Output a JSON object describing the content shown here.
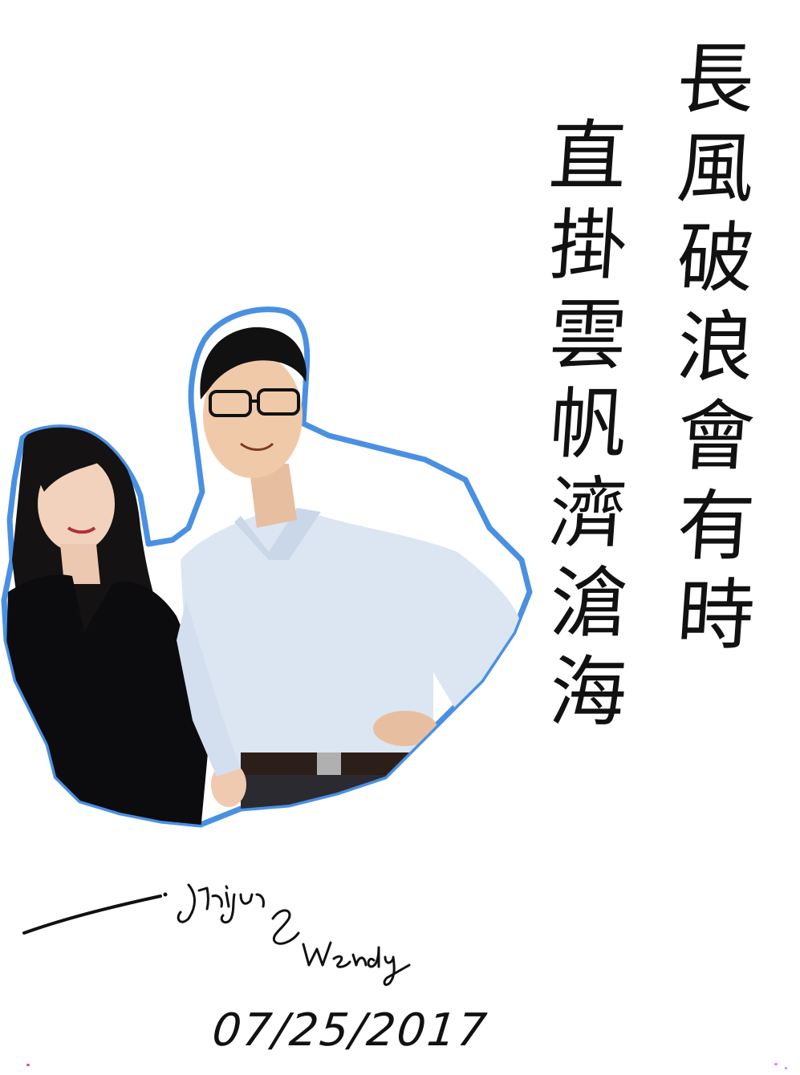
{
  "poem": {
    "line_1": [
      "長",
      "風",
      "破",
      "浪",
      "會",
      "有",
      "時"
    ],
    "line_2": [
      "直",
      "掛",
      "雲",
      "帆",
      "濟",
      "滄",
      "海"
    ]
  },
  "signature": {
    "names": "Jinjun & Wendy"
  },
  "date": "07/25/2017",
  "colors": {
    "outline": "#4a90e2",
    "ink": "#111111"
  }
}
